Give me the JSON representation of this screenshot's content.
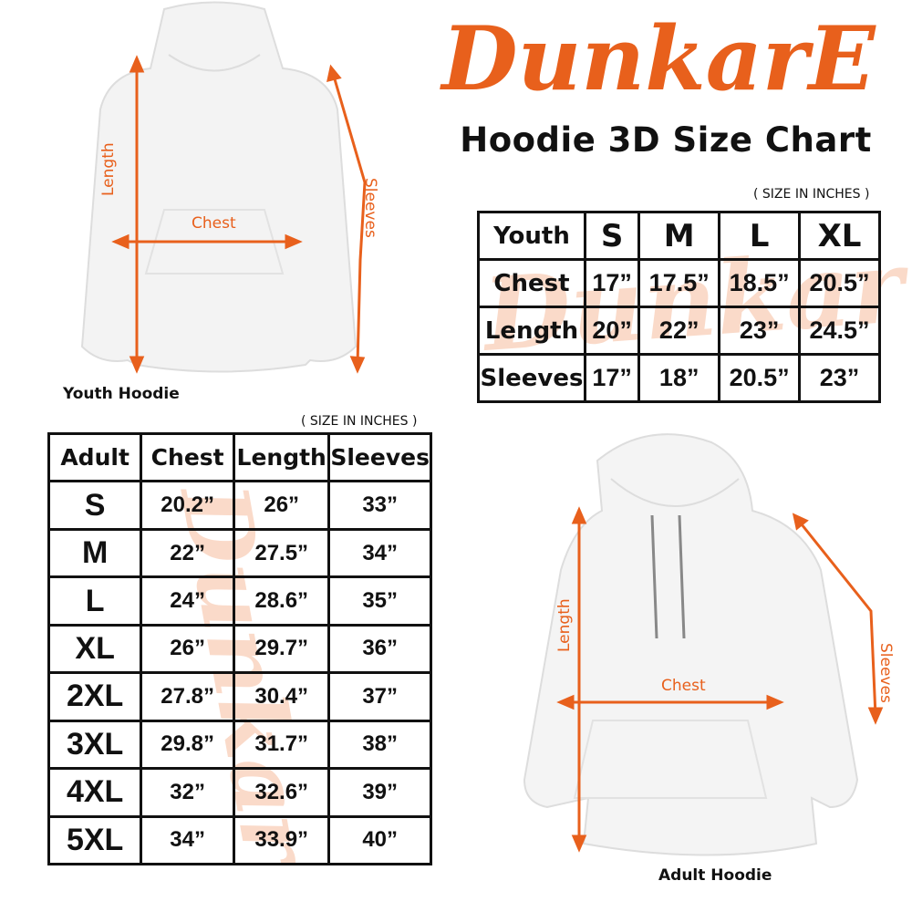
{
  "brand": {
    "logo_text": "DunkarE",
    "color": "#e8601c"
  },
  "title": "Hoodie 3D Size Chart",
  "youth": {
    "caption": "Youth Hoodie",
    "unit_note": "( SIZE IN INCHES )",
    "labels": {
      "length": "Length",
      "chest": "Chest",
      "sleeves": "Sleeves"
    },
    "table": {
      "headers": [
        "Youth",
        "S",
        "M",
        "L",
        "XL"
      ],
      "rows": [
        [
          "Chest",
          "17”",
          "17.5”",
          "18.5”",
          "20.5”"
        ],
        [
          "Length",
          "20”",
          "22”",
          "23”",
          "24.5”"
        ],
        [
          "Sleeves",
          "17”",
          "18”",
          "20.5”",
          "23”"
        ]
      ]
    }
  },
  "adult": {
    "caption": "Adult Hoodie",
    "unit_note": "( SIZE IN INCHES )",
    "labels": {
      "length": "Length",
      "chest": "Chest",
      "sleeves": "Sleeves"
    },
    "table": {
      "headers": [
        "Adult",
        "Chest",
        "Length",
        "Sleeves"
      ],
      "rows": [
        [
          "S",
          "20.2”",
          "26”",
          "33”"
        ],
        [
          "M",
          "22”",
          "27.5”",
          "34”"
        ],
        [
          "L",
          "24”",
          "28.6”",
          "35”"
        ],
        [
          "XL",
          "26”",
          "29.7”",
          "36”"
        ],
        [
          "2XL",
          "27.8”",
          "30.4”",
          "37”"
        ],
        [
          "3XL",
          "29.8”",
          "31.7”",
          "38”"
        ],
        [
          "4XL",
          "32”",
          "32.6”",
          "39”"
        ],
        [
          "5XL",
          "34”",
          "33.9”",
          "40”"
        ]
      ]
    }
  }
}
